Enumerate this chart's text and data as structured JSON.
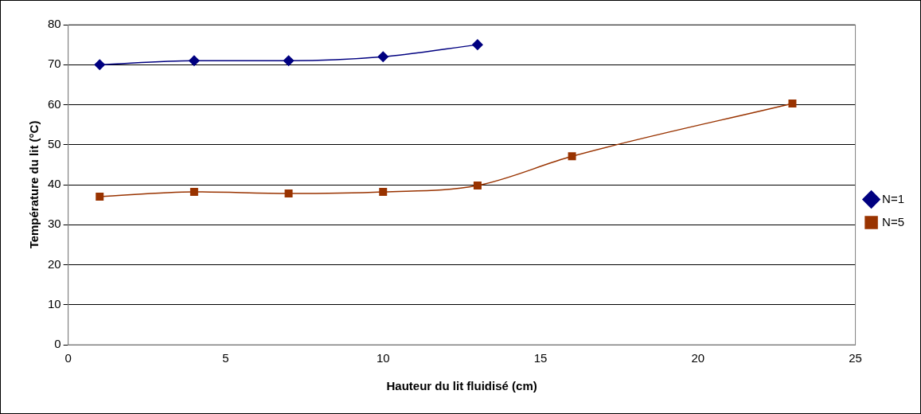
{
  "chart_data": {
    "type": "line",
    "xlabel": "Hauteur du lit fluidisé (cm)",
    "ylabel": "Température du lit (°C)",
    "xlim": [
      0,
      25
    ],
    "xticks": [
      0,
      5,
      10,
      15,
      20,
      25
    ],
    "ylim": [
      0,
      80
    ],
    "yticks": [
      0,
      10,
      20,
      30,
      40,
      50,
      60,
      70,
      80
    ],
    "grid": "y",
    "legend": "right",
    "line_style": "solid",
    "series": [
      {
        "name": "N=1",
        "color": "#000080",
        "marker": "diamond",
        "x": [
          1,
          4,
          7,
          10,
          13
        ],
        "values": [
          70,
          71,
          71,
          72,
          75
        ]
      },
      {
        "name": "N=5",
        "color": "#993300",
        "marker": "square",
        "x": [
          1,
          4,
          7,
          10,
          13,
          16,
          23
        ],
        "values": [
          37,
          38.2,
          37.8,
          38.2,
          39.8,
          47.1,
          60.3
        ]
      }
    ]
  }
}
